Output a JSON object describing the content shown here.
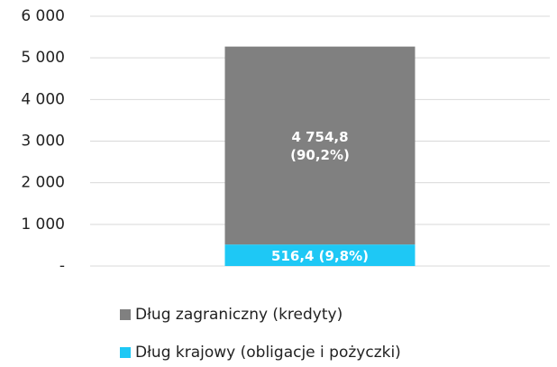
{
  "chart_data": {
    "type": "stacked_bar",
    "categories": [
      null
    ],
    "series": [
      {
        "name": "Dług krajowy (obligacje i pożyczki)",
        "color": "#1ec8f5",
        "values": [
          516.4
        ],
        "value_labels": [
          "516,4 (9,8%)"
        ]
      },
      {
        "name": "Dług zagraniczny (kredyty)",
        "color": "#808080",
        "values": [
          4754.8
        ],
        "value_labels": [
          "4 754,8\n(90,2%)"
        ]
      }
    ],
    "ylim": [
      0,
      6000
    ],
    "yticks": [
      {
        "value": 0,
        "label": "-"
      },
      {
        "value": 1000,
        "label": "1 000"
      },
      {
        "value": 2000,
        "label": "2 000"
      },
      {
        "value": 3000,
        "label": "3 000"
      },
      {
        "value": 4000,
        "label": "4 000"
      },
      {
        "value": 5000,
        "label": "5 000"
      },
      {
        "value": 6000,
        "label": "6 000"
      }
    ],
    "grid": true
  }
}
